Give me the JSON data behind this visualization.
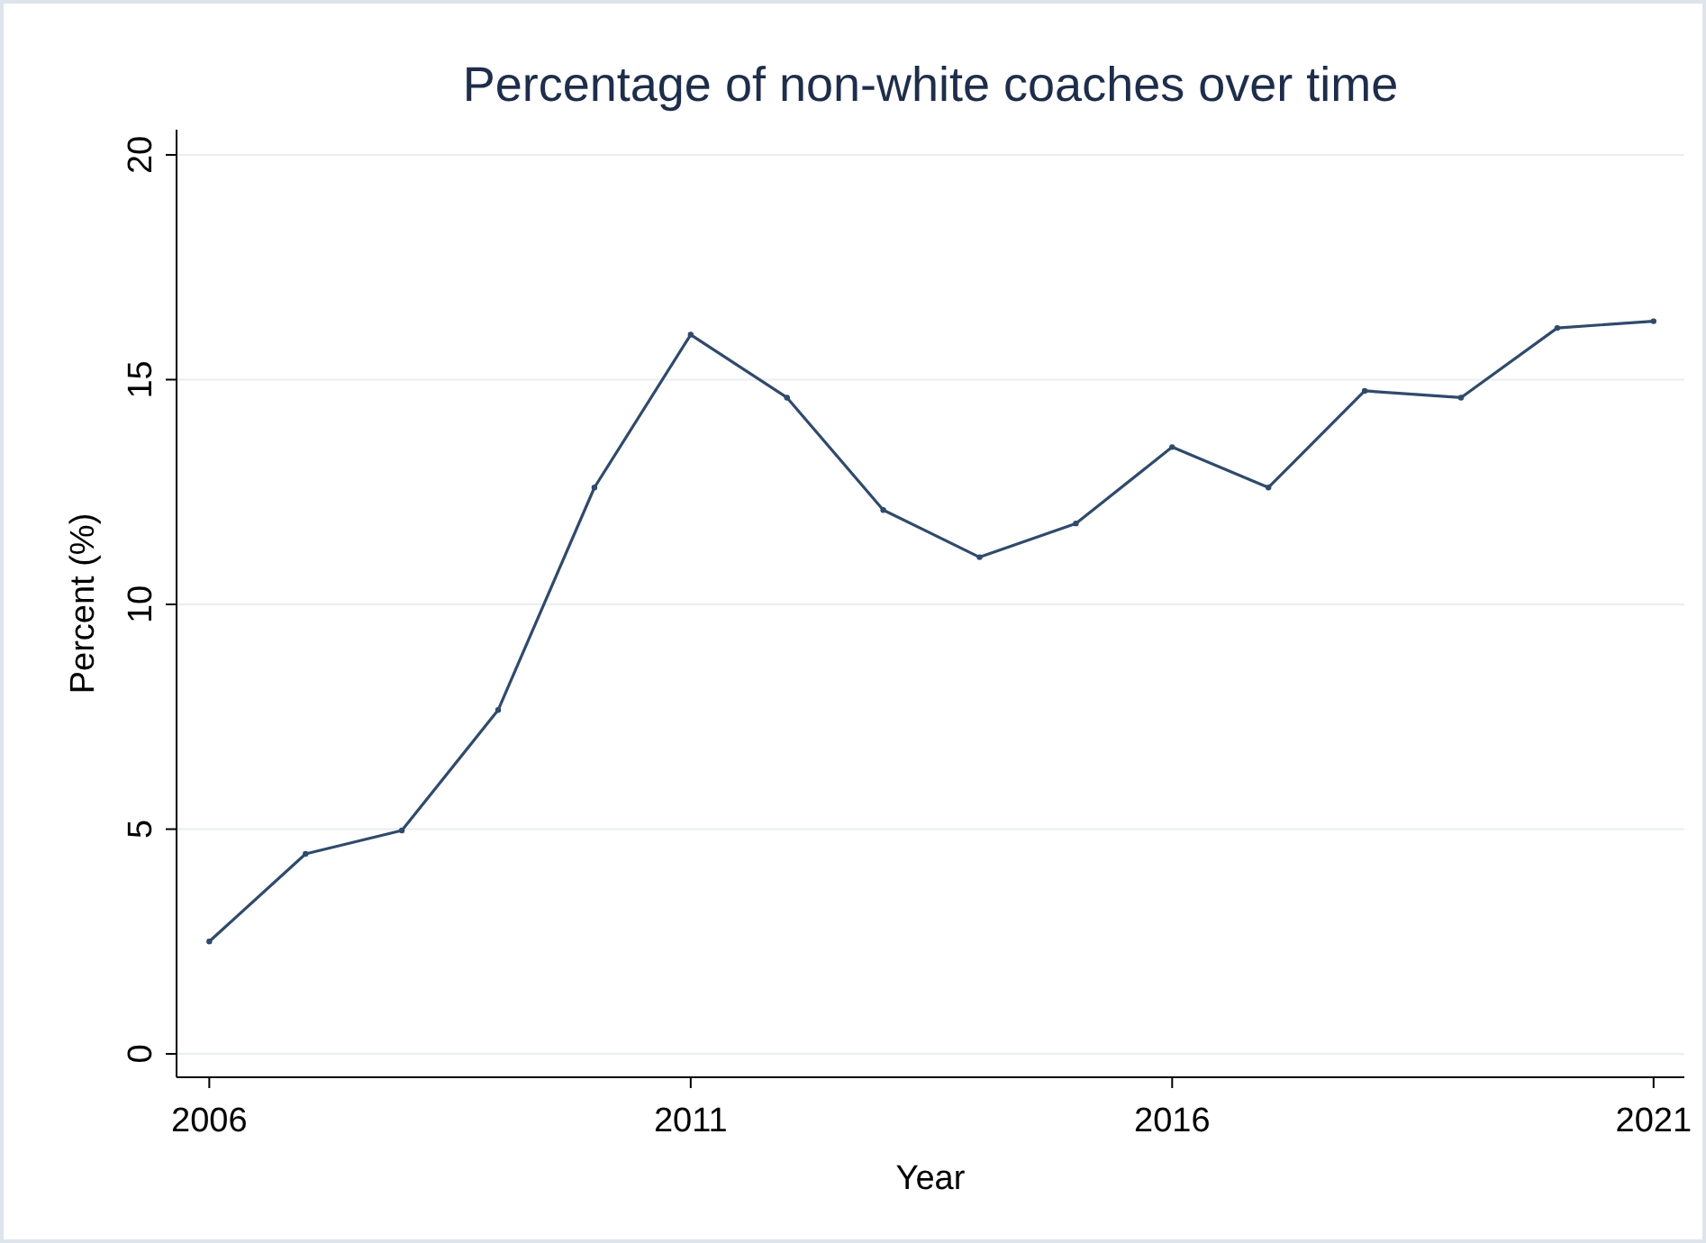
{
  "chart_data": {
    "type": "line",
    "title": "Percentage of non-white coaches over time",
    "xlabel": "Year",
    "ylabel": "Percent (%)",
    "x": [
      2006,
      2007,
      2008,
      2009,
      2010,
      2011,
      2012,
      2013,
      2014,
      2015,
      2016,
      2017,
      2018,
      2019,
      2020,
      2021
    ],
    "series": [
      {
        "color": "#2f4a6b",
        "values": [
          2.5,
          4.45,
          4.97,
          7.65,
          12.6,
          16.0,
          14.6,
          12.1,
          11.05,
          11.8,
          13.5,
          12.6,
          14.75,
          14.6,
          16.15,
          16.3
        ]
      }
    ],
    "xlim": [
      2005.66,
      2021.32
    ],
    "xticks": [
      2006,
      2011,
      2016,
      2021
    ],
    "ylim": [
      -0.52,
      20.56
    ],
    "yticks": [
      0,
      5,
      10,
      15,
      20
    ],
    "grid": "y",
    "marker": "circle",
    "line_style": "solid"
  }
}
